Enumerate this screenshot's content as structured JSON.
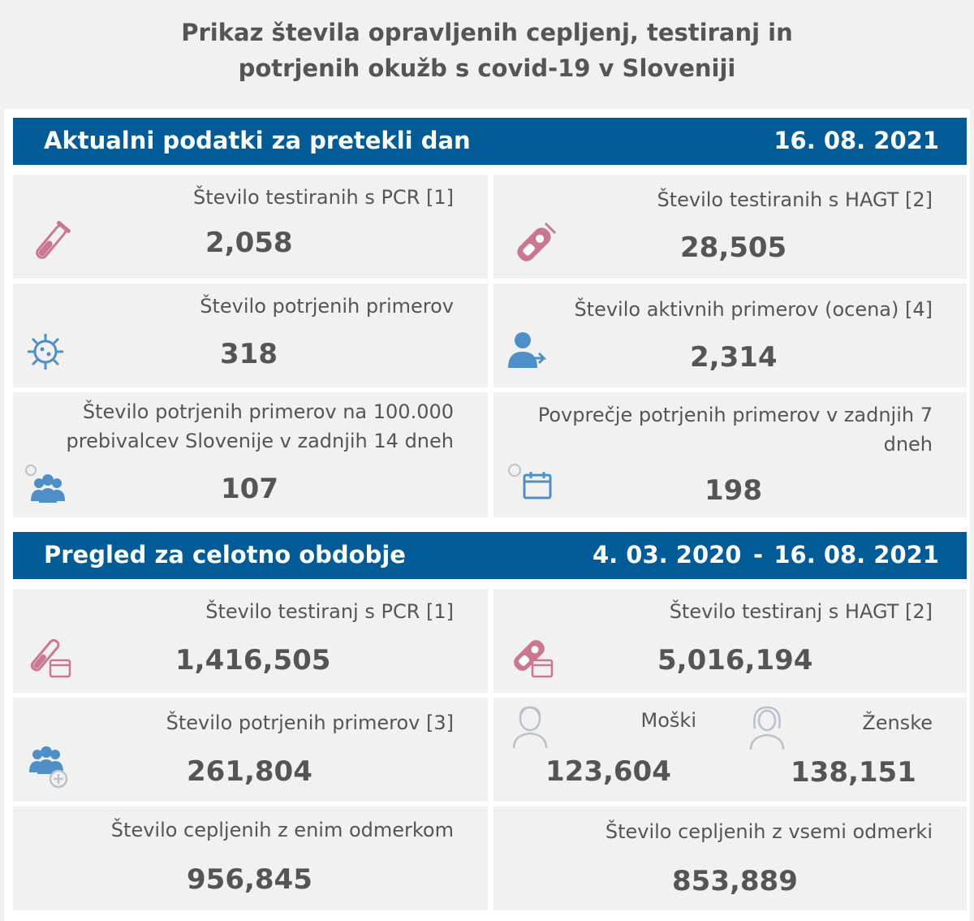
{
  "title": {
    "line1": "Prikaz števila opravljenih cepljenj, testiranj in",
    "line2": "potrjenih okužb s covid-19 v Sloveniji"
  },
  "daily": {
    "heading": "Aktualni podatki za pretekli dan",
    "date": "16. 08. 2021",
    "cards": {
      "pcr": {
        "label": "Število testiranih s PCR [1]",
        "value": "2,058",
        "icon": "test-tube-icon"
      },
      "hagt": {
        "label": "Število testiranih s HAGT [2]",
        "value": "28,505",
        "icon": "rapid-test-icon"
      },
      "confirmed": {
        "label": "Število potrjenih primerov",
        "value": "318",
        "icon": "virus-icon"
      },
      "active": {
        "label": "Število aktivnih primerov (ocena) [4]",
        "value": "2,314",
        "icon": "person-icon"
      },
      "per100k": {
        "label": "Število potrjenih primerov na 100.000 prebivalcev Slovenije v zadnjih 14 dneh",
        "value": "107",
        "icon": "group-virus-icon"
      },
      "avg7": {
        "label": "Povprečje potrjenih primerov v zadnjih 7 dneh",
        "value": "198",
        "icon": "calendar-virus-icon"
      }
    }
  },
  "total": {
    "heading": "Pregled za celotno obdobje",
    "date_from": "4. 03. 2020",
    "separator": "-",
    "date_to": "16. 08. 2021",
    "cards": {
      "pcr": {
        "label": "Število testiranj s PCR [1]",
        "value": "1,416,505",
        "icon": "test-tube-calendar-icon"
      },
      "hagt": {
        "label": "Število testiranj s HAGT [2]",
        "value": "5,016,194",
        "icon": "rapid-test-calendar-icon"
      },
      "confirmed": {
        "label": "Število potrjenih primerov [3]",
        "value": "261,804",
        "icon": "group-plus-icon"
      },
      "male": {
        "label": "Moški",
        "value": "123,604",
        "icon": "male-icon"
      },
      "female": {
        "label": "Ženske",
        "value": "138,151",
        "icon": "female-icon"
      },
      "vacc_one": {
        "label": "Število cepljenih z enim odmerkom",
        "value": "956,845"
      },
      "vacc_all": {
        "label": "Število cepljenih z vsemi odmerki",
        "value": "853,889"
      }
    }
  },
  "colors": {
    "banner": "#005b96",
    "card_bg": "#f1f1f1",
    "icon_pink": "#c9788f",
    "icon_blue": "#4f8fc8",
    "icon_gray": "#b9c1cc"
  }
}
